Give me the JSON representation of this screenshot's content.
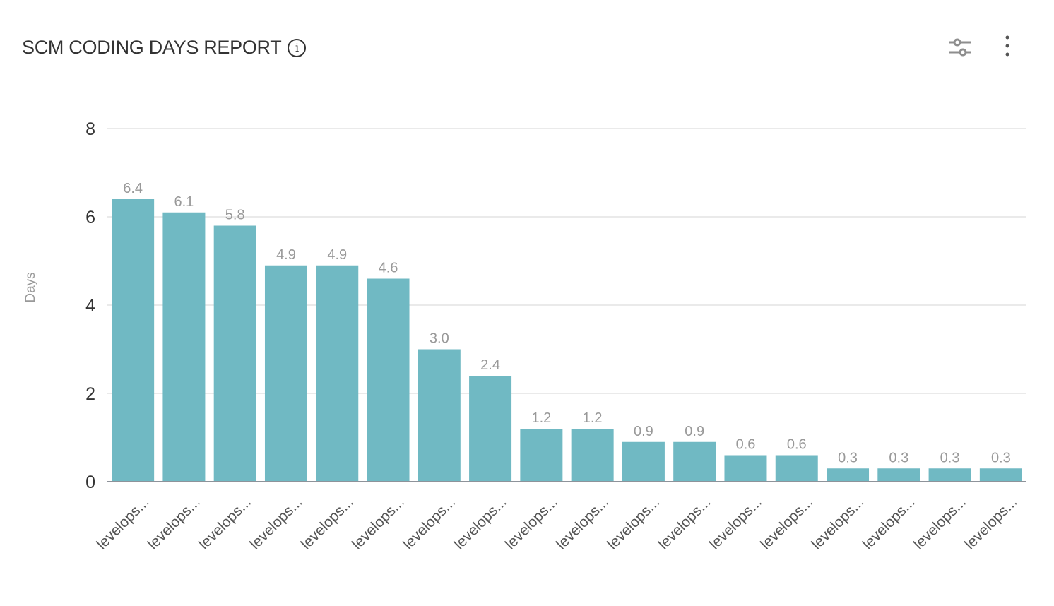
{
  "header": {
    "title": "SCM CODING DAYS REPORT",
    "info_icon": "info-icon",
    "settings_icon": "sliders-icon",
    "more_icon": "more-vertical-icon"
  },
  "chart_data": {
    "type": "bar",
    "title": "",
    "xlabel": "",
    "ylabel": "Days",
    "ylim": [
      0,
      8
    ],
    "yticks": [
      0,
      2,
      4,
      6,
      8
    ],
    "grid": true,
    "bar_color": "#70b9c3",
    "categories": [
      "levelops...",
      "levelops...",
      "levelops...",
      "levelops...",
      "levelops...",
      "levelops...",
      "levelops...",
      "levelops...",
      "levelops...",
      "levelops...",
      "levelops...",
      "levelops...",
      "levelops...",
      "levelops...",
      "levelops...",
      "levelops...",
      "levelops...",
      "levelops..."
    ],
    "values": [
      6.4,
      6.1,
      5.8,
      4.9,
      4.9,
      4.6,
      3.0,
      2.4,
      1.2,
      1.2,
      0.9,
      0.9,
      0.6,
      0.6,
      0.3,
      0.3,
      0.3,
      0.3
    ],
    "data_labels": [
      "6.4",
      "6.1",
      "5.8",
      "4.9",
      "4.9",
      "4.6",
      "3.0",
      "2.4",
      "1.2",
      "1.2",
      "0.9",
      "0.9",
      "0.6",
      "0.6",
      "0.3",
      "0.3",
      "0.3",
      "0.3"
    ]
  }
}
